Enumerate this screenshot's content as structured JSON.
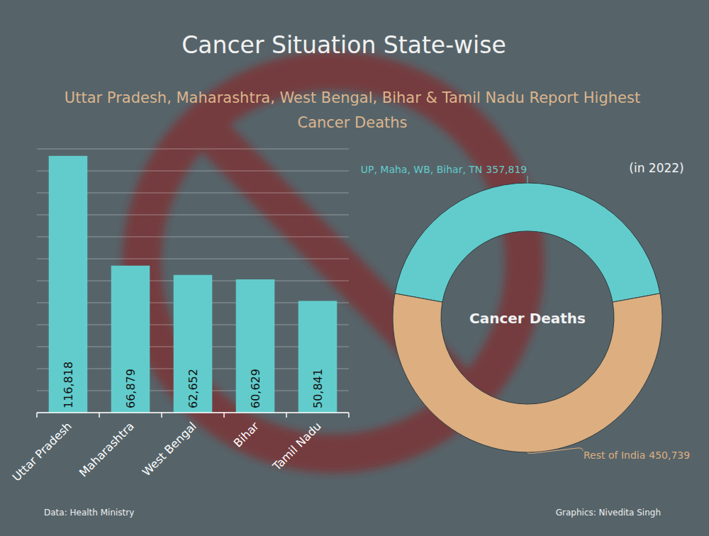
{
  "title": "Cancer Situation State-wise",
  "subtitle": "Uttar Pradesh, Maharashtra, West Bengal, Bihar & Tamil Nadu Report Highest Cancer Deaths",
  "source": "Data: Health Ministry",
  "credit": "Graphics: Nivedita Singh",
  "chart_data": [
    {
      "type": "bar",
      "categories": [
        "Uttar Pradesh",
        "Maharashtra",
        "West Bengal",
        "Bihar",
        "Tamil Nadu"
      ],
      "values": [
        116818,
        66879,
        62652,
        60629,
        50841
      ],
      "value_labels": [
        "116,818",
        "66,879",
        "62,652",
        "60,629",
        "50,841"
      ],
      "color": "#62cccc",
      "ylim": [
        0,
        120000
      ],
      "yticks": [
        0,
        10000,
        20000,
        30000,
        40000,
        50000,
        60000,
        70000,
        80000,
        90000,
        100000,
        110000,
        120000
      ],
      "grid": true,
      "tick_labels": "x",
      "data_labels": true
    },
    {
      "type": "donut",
      "title": "Cancer Deaths",
      "annotation": "(in 2022)",
      "categories": [
        "UP, Maha, WB, Bihar, TN",
        "Rest of India"
      ],
      "values": [
        357819,
        450739
      ],
      "value_labels": [
        "357,819",
        "450,739"
      ],
      "colors": [
        "#62cccc",
        "#dcae80"
      ],
      "data_labels": true
    }
  ]
}
